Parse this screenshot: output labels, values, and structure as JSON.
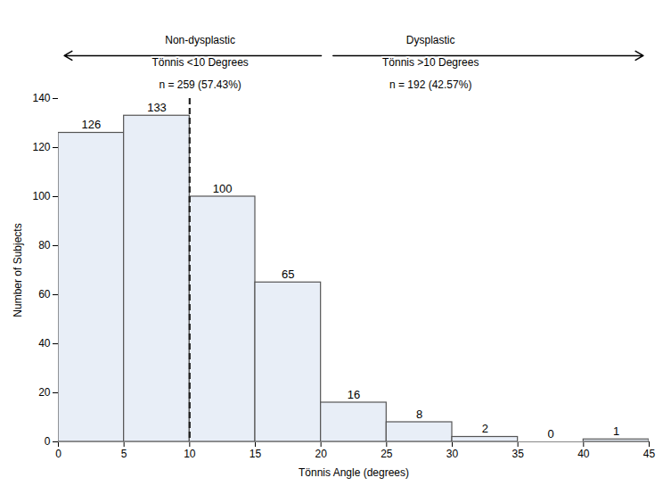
{
  "chart_data": {
    "type": "histogram",
    "bins": [
      0,
      5,
      10,
      15,
      20,
      25,
      30,
      35,
      40,
      45
    ],
    "values": [
      126,
      133,
      100,
      65,
      16,
      8,
      2,
      0,
      1
    ],
    "xlim": [
      0,
      45
    ],
    "ylim": [
      0,
      140
    ],
    "xticks": [
      0,
      5,
      10,
      15,
      20,
      25,
      30,
      35,
      40,
      45
    ],
    "yticks": [
      0,
      20,
      40,
      60,
      80,
      100,
      120,
      140
    ],
    "xlabel": "Tönnis Angle (degrees)",
    "ylabel": "Number of Subjects",
    "data_labels": true,
    "vlines": [
      10
    ],
    "annotations": [
      {
        "lines": [
          "Non-dysplastic",
          "Tönnis <10 Degrees",
          "n = 259 (57.43%)"
        ],
        "arrow": "left"
      },
      {
        "lines": [
          "Dysplastic",
          "Tönnis >10 Degrees",
          "n = 192 (42.57%)"
        ],
        "arrow": "right"
      }
    ]
  }
}
